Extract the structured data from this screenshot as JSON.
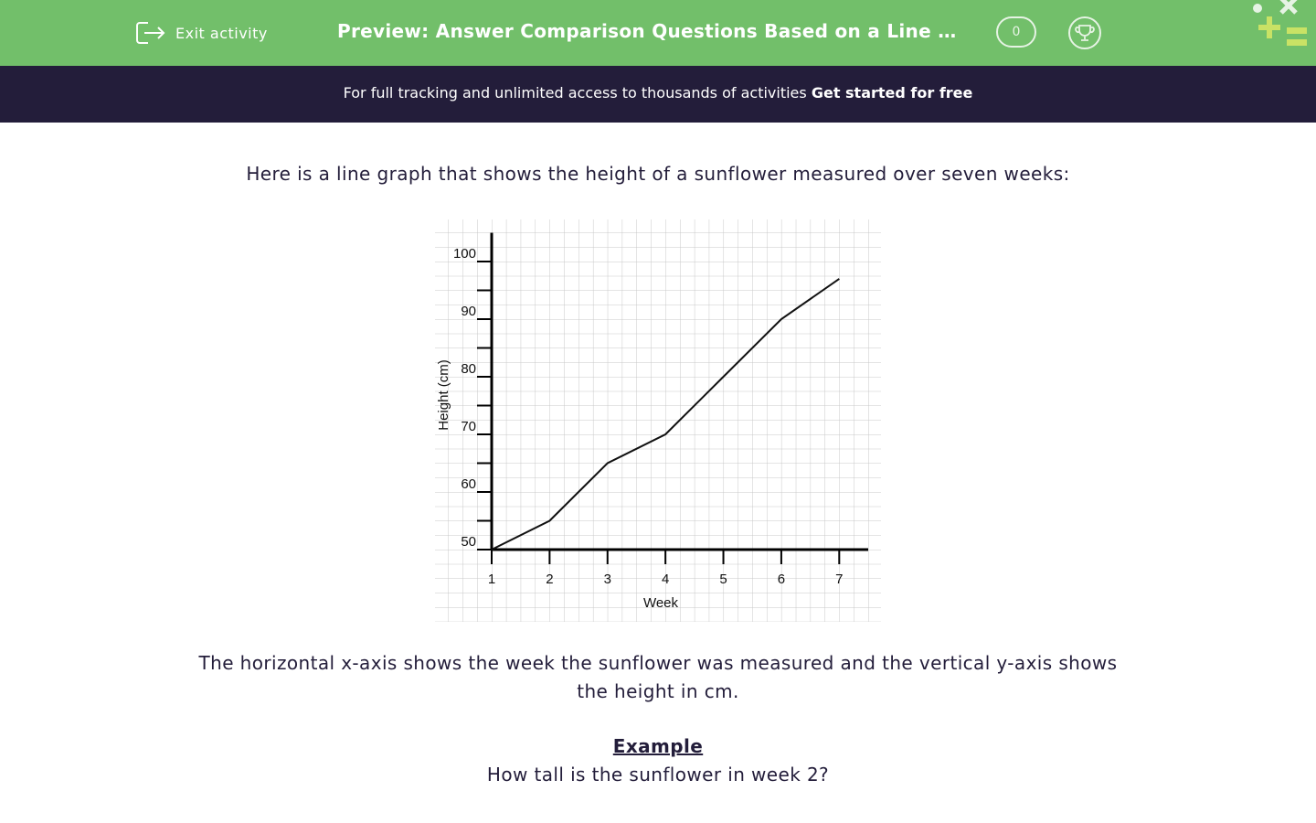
{
  "header": {
    "exit": "Exit activity",
    "title": "Preview: Answer Comparison Questions Based on a Line …",
    "score": "0"
  },
  "banner": {
    "text": "For full tracking and unlimited access to thousands of activities",
    "link": "Get started for free"
  },
  "intro": "Here is a line graph that shows the height of a sunflower measured over seven weeks:",
  "description": "The horizontal x-axis shows the week the sunflower was measured and the vertical y-axis shows the height in cm.",
  "example": "Example",
  "question": "How tall is the sunflower in week 2?",
  "chart_data": {
    "type": "line",
    "x_label": "Week",
    "y_label": "Height (cm)",
    "x": [
      1,
      2,
      3,
      4,
      5,
      6,
      7
    ],
    "values": [
      50,
      55,
      65,
      70,
      80,
      90,
      97
    ],
    "color": "#111111",
    "xlim": [
      1,
      7.5
    ],
    "xticks": [
      1,
      2,
      3,
      4,
      5,
      6,
      7
    ],
    "ylim": [
      50,
      105
    ],
    "yticks": [
      50,
      60,
      70,
      80,
      90,
      100
    ],
    "minor_yticks": [
      55,
      65,
      75,
      85,
      95
    ]
  }
}
